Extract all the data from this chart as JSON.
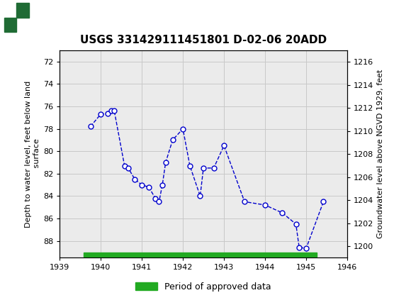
{
  "title": "USGS 331429111451801 D-02-06 20ADD",
  "ylabel_left": "Depth to water level, feet below land\n surface",
  "ylabel_right": "Groundwater level above NGVD 1929, feet",
  "xlim": [
    1939,
    1946
  ],
  "ylim_left": [
    89.5,
    71.0
  ],
  "ylim_right": [
    1199.0,
    1217.0
  ],
  "xticks": [
    1939,
    1940,
    1941,
    1942,
    1943,
    1944,
    1945,
    1946
  ],
  "yticks_left": [
    72,
    74,
    76,
    78,
    80,
    82,
    84,
    86,
    88
  ],
  "yticks_right": [
    1216,
    1214,
    1212,
    1210,
    1208,
    1206,
    1204,
    1202,
    1200
  ],
  "data_x": [
    1939.75,
    1940.0,
    1940.17,
    1940.25,
    1940.33,
    1940.58,
    1940.67,
    1940.83,
    1941.0,
    1941.17,
    1941.33,
    1941.42,
    1941.5,
    1941.58,
    1941.75,
    1942.0,
    1942.17,
    1942.42,
    1942.5,
    1942.75,
    1943.0,
    1943.5,
    1944.0,
    1944.42,
    1944.75,
    1944.83,
    1945.0,
    1945.42
  ],
  "data_y": [
    77.8,
    76.7,
    76.65,
    76.4,
    76.4,
    81.3,
    81.5,
    82.5,
    83.0,
    83.2,
    84.2,
    84.5,
    83.0,
    81.0,
    79.0,
    78.0,
    81.3,
    84.0,
    81.5,
    81.5,
    79.5,
    84.5,
    84.8,
    85.5,
    86.5,
    88.6,
    88.65,
    84.5
  ],
  "line_color": "#0000CD",
  "marker_facecolor": "white",
  "line_style": "--",
  "marker_size": 5,
  "grid_color": "#C8C8C8",
  "plot_bg_color": "#EBEBEB",
  "fig_bg_color": "#FFFFFF",
  "header_bg_color": "#1F6B34",
  "legend_label": "Period of approved data",
  "legend_color": "#22AA22",
  "approved_bar_xstart": 1939.58,
  "approved_bar_xend": 1945.25
}
